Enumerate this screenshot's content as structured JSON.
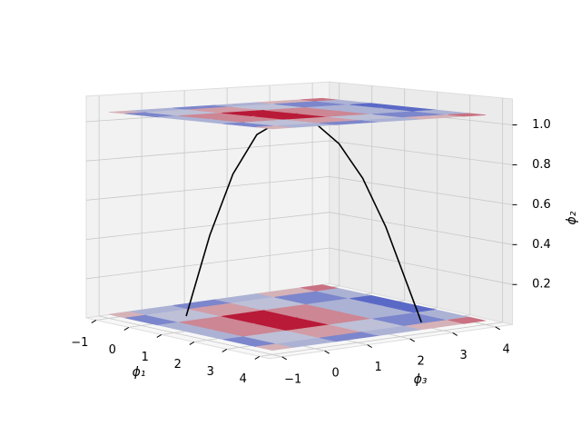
{
  "chart_data": {
    "type": "surface3d",
    "x_label": "ϕ₁",
    "y_label": "ϕ₃",
    "z_label": "ϕ₂",
    "xlim": [
      -1.3,
      4.3
    ],
    "ylim": [
      -1.3,
      4.4
    ],
    "zlim": [
      0,
      1.13
    ],
    "xticks": [
      {
        "value": -1,
        "label": "−1"
      },
      0,
      1,
      2,
      3,
      4
    ],
    "yticks": [
      {
        "value": -1,
        "label": "−1"
      },
      0,
      1,
      2,
      3,
      4
    ],
    "zticks": [
      0.2,
      0.4,
      0.6,
      {
        "value": 1,
        "label": "1.0"
      },
      0.8
    ],
    "grid": true,
    "colormap": "coolwarm",
    "surfaces": [
      {
        "z": 0.02,
        "x": [
          -1,
          0,
          1,
          2,
          3,
          4
        ],
        "y": [
          -1,
          0,
          1,
          2,
          3,
          4
        ],
        "values": [
          [
            0.2,
            -0.3,
            -0.6,
            -0.3,
            0.2,
            0.5
          ],
          [
            -0.6,
            -0.2,
            0.3,
            -0.2,
            -0.6,
            -0.3
          ],
          [
            -0.3,
            0.4,
            0.9,
            0.4,
            -0.3,
            -0.8
          ],
          [
            -0.3,
            0.4,
            0.9,
            0.4,
            -0.3,
            -0.8
          ],
          [
            -0.6,
            -0.2,
            0.3,
            -0.2,
            -0.6,
            -0.3
          ],
          [
            0.2,
            -0.3,
            -0.6,
            -0.3,
            0.2,
            0.5
          ]
        ]
      },
      {
        "z": 1.05,
        "x": [
          -1,
          0,
          1,
          2,
          3,
          4
        ],
        "y": [
          -1,
          0,
          1,
          2,
          3,
          4
        ],
        "values": [
          [
            0.2,
            -0.3,
            -0.6,
            -0.3,
            0.2,
            0.5
          ],
          [
            -0.6,
            -0.2,
            0.3,
            -0.2,
            -0.6,
            -0.3
          ],
          [
            -0.3,
            0.4,
            0.9,
            0.4,
            -0.3,
            -0.8
          ],
          [
            -0.3,
            0.4,
            0.9,
            0.4,
            -0.3,
            -0.8
          ],
          [
            -0.6,
            -0.2,
            0.3,
            -0.2,
            -0.6,
            -0.3
          ],
          [
            0.2,
            -0.3,
            -0.6,
            -0.3,
            0.2,
            0.5
          ]
        ]
      }
    ],
    "curve": {
      "color": "#000000",
      "x": [
        0.23,
        0.56,
        0.89,
        1.23,
        1.69,
        2.06,
        2.39,
        2.72,
        3.05,
        3.55
      ],
      "y": [
        -0.13,
        0.17,
        0.46,
        0.76,
        1.18,
        1.5,
        1.8,
        2.1,
        2.39,
        2.84
      ],
      "z": [
        0.03,
        0.44,
        0.75,
        0.95,
        1.05,
        1.01,
        0.91,
        0.74,
        0.5,
        0.03
      ]
    }
  }
}
